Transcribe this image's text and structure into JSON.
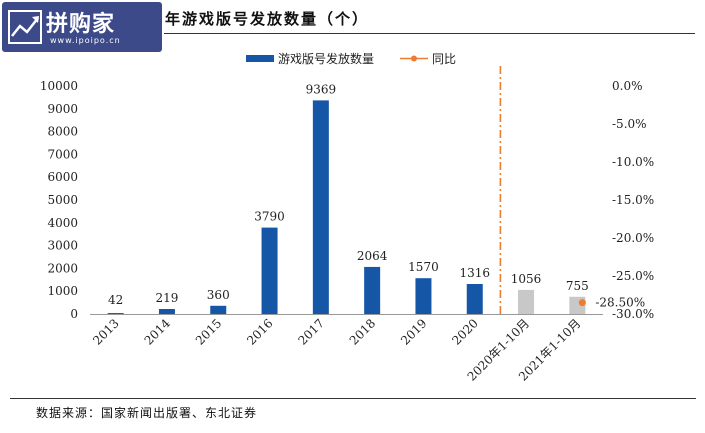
{
  "logo": {
    "main_text": "拼购家",
    "sub_text": "www.ipoipo.cn"
  },
  "title": "年游戏版号发放数量（个）",
  "source": "数据来源：国家新闻出版署、东北证券",
  "colors": {
    "bar_main": "#1557a6",
    "bar_gray": "#c8c8c8",
    "yoy": "#ed7d31",
    "logo_bg": "#3c4a8a"
  },
  "chart_data": {
    "type": "bar",
    "categories": [
      "2013",
      "2014",
      "2015",
      "2016",
      "2017",
      "2018",
      "2019",
      "2020",
      "2020年1-10月",
      "2021年1-10月"
    ],
    "series": [
      {
        "name": "游戏版号发放数量",
        "values": [
          42,
          219,
          360,
          3790,
          9369,
          2064,
          1570,
          1316,
          1056,
          755
        ],
        "data_labels": [
          "42",
          "219",
          "360",
          "3790",
          "9369",
          "2064",
          "1570",
          "1316",
          "1056",
          "755"
        ]
      },
      {
        "name": "同比",
        "type": "scatter",
        "axis": "right",
        "values": [
          null,
          null,
          null,
          null,
          null,
          null,
          null,
          null,
          null,
          -28.5
        ],
        "data_labels": [
          "",
          "",
          "",
          "",
          "",
          "",
          "",
          "",
          "",
          "-28.50%"
        ]
      }
    ],
    "gray_categories": [
      "2020年1-10月",
      "2021年1-10月"
    ],
    "divider": "dash-dot line between 2020 and 2020年1-10月",
    "y_left": {
      "min": 0,
      "max": 10000,
      "step": 1000,
      "tick_labels": [
        "0",
        "1000",
        "2000",
        "3000",
        "4000",
        "5000",
        "6000",
        "7000",
        "8000",
        "9000",
        "10000"
      ]
    },
    "y_right": {
      "min": -30,
      "max": 0,
      "step": 5,
      "tick_labels": [
        "0.0%",
        "-5.0%",
        "-10.0%",
        "-15.0%",
        "-20.0%",
        "-25.0%",
        "-30.0%"
      ]
    },
    "legend": {
      "placement": "top-center",
      "items": [
        "游戏版号发放数量",
        "同比"
      ]
    },
    "grid": false
  }
}
